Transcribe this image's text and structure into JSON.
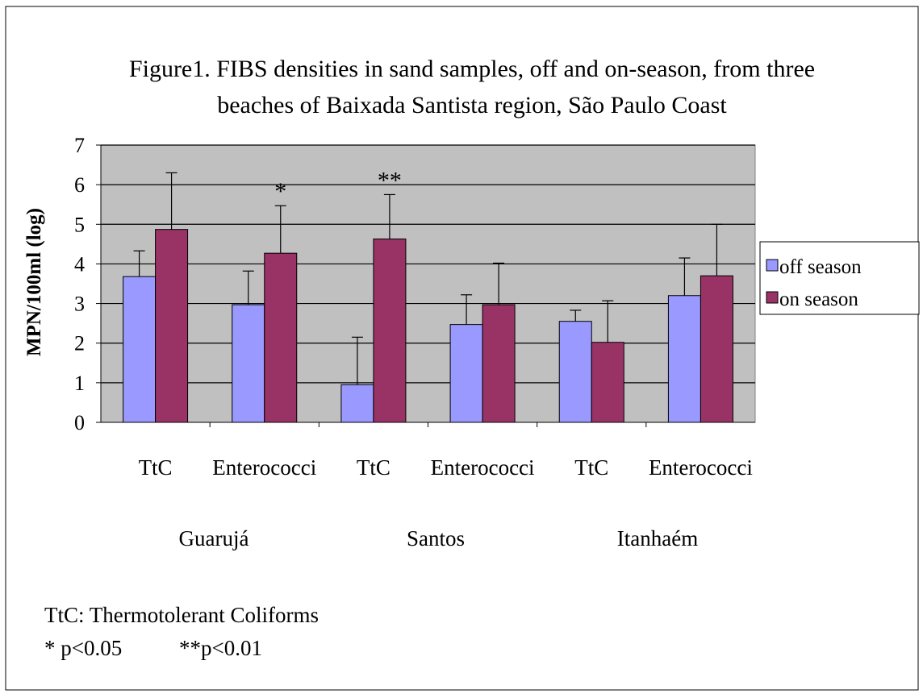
{
  "chart_data": {
    "type": "bar",
    "title_line1": "Figure1. FIBS densities in sand samples, off and on-season, from three",
    "title_line2": "beaches of Baixada Santista region, São Paulo Coast",
    "xlabel": "",
    "ylabel": "MPN/100ml (log)",
    "ylim": [
      0,
      7
    ],
    "yticks": [
      "0",
      "1",
      "2",
      "3",
      "4",
      "5",
      "6",
      "7"
    ],
    "grid": true,
    "plot_background": "#C0C0C0",
    "legend_position": "right",
    "categories": [
      "TtC",
      "Enterococci",
      "TtC",
      "Enterococci",
      "TtC",
      "Enterococci"
    ],
    "groups": [
      "Guarujá",
      "Santos",
      "Itanhaém"
    ],
    "series": [
      {
        "name": "off season",
        "color": "#9999FF",
        "values": [
          3.68,
          2.97,
          0.95,
          2.47,
          2.55,
          3.2
        ],
        "error_up": [
          0.65,
          0.85,
          1.2,
          0.75,
          0.28,
          0.95
        ]
      },
      {
        "name": "on season",
        "color": "#993366",
        "values": [
          4.87,
          4.27,
          4.63,
          2.97,
          2.02,
          3.7
        ],
        "error_up": [
          1.43,
          1.2,
          1.12,
          1.05,
          1.05,
          1.3
        ]
      }
    ],
    "annotations": [
      {
        "text": "*",
        "category_index": 1
      },
      {
        "text": "**",
        "category_index": 2
      }
    ]
  },
  "footnotes": {
    "line1": "TtC: Thermotolerant Coliforms",
    "line2_a": "* p<0.05",
    "line2_b": "**p<0.01"
  }
}
